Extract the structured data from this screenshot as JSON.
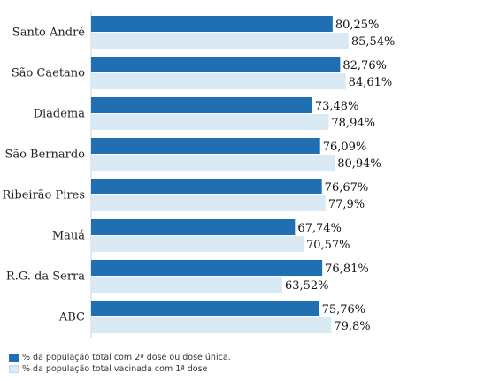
{
  "chart_data": {
    "type": "bar",
    "orientation": "horizontal",
    "categories": [
      "Santo André",
      "São Caetano",
      "Diadema",
      "São Bernardo",
      "Ribeirão Pires",
      "Mauá",
      "R.G. da Serra",
      "ABC"
    ],
    "series": [
      {
        "name": "% da população total com 2ª dose ou dose única.",
        "color": "#1f6fb2",
        "values": [
          80.25,
          82.76,
          73.48,
          76.09,
          76.67,
          67.74,
          76.81,
          75.76
        ],
        "labels": [
          "80,25%",
          "82,76%",
          "73,48%",
          "76,09%",
          "76,67%",
          "67,74%",
          "76,81%",
          "75,76%"
        ]
      },
      {
        "name": "% da população total vacinada com 1ª dose",
        "color": "#d9eaf5",
        "values": [
          85.54,
          84.61,
          78.94,
          80.94,
          77.9,
          70.57,
          63.52,
          79.8
        ],
        "labels": [
          "85,54%",
          "84,61%",
          "78,94%",
          "80,94%",
          "77,9%",
          "70,57%",
          "63,52%",
          "79,8%"
        ]
      }
    ],
    "legend_position": "bottom-left",
    "grid": false
  }
}
